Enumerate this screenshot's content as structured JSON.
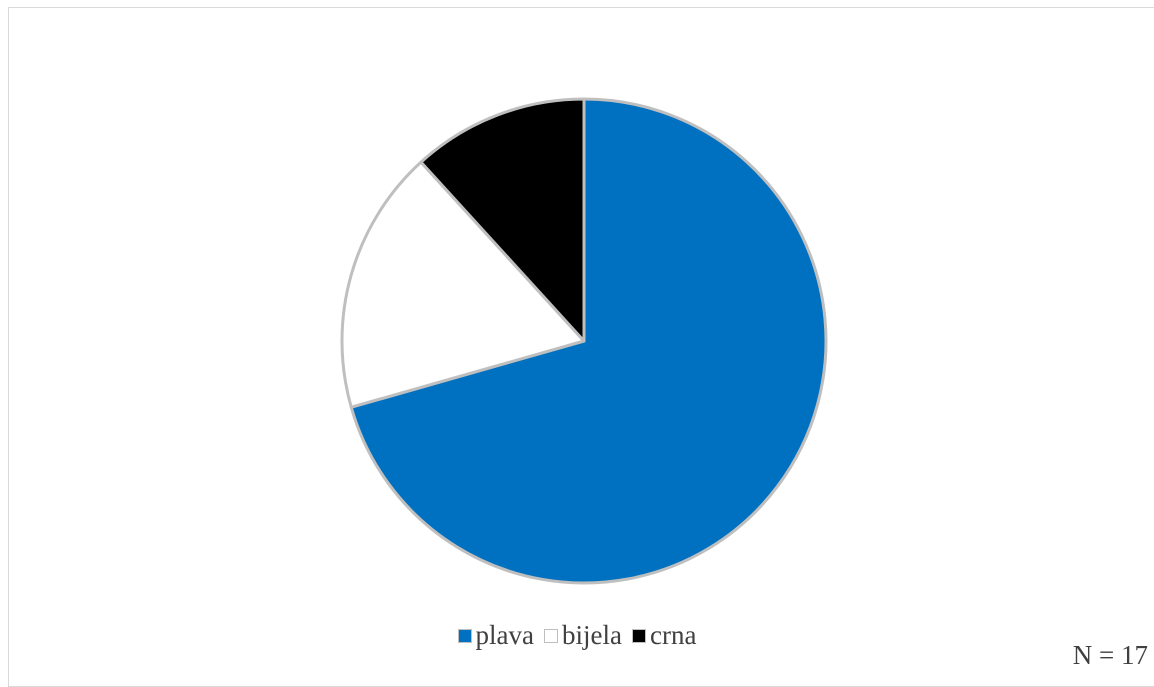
{
  "chart_data": {
    "type": "pie",
    "categories": [
      "plava",
      "bijela",
      "crna"
    ],
    "values": [
      12,
      3,
      2
    ],
    "colors": [
      "#0070c0",
      "#ffffff",
      "#000000"
    ],
    "slice_border_color": "#bfbfbf",
    "legend_position": "bottom",
    "start_angle": "top",
    "direction": "clockwise",
    "note": "N = 17"
  }
}
